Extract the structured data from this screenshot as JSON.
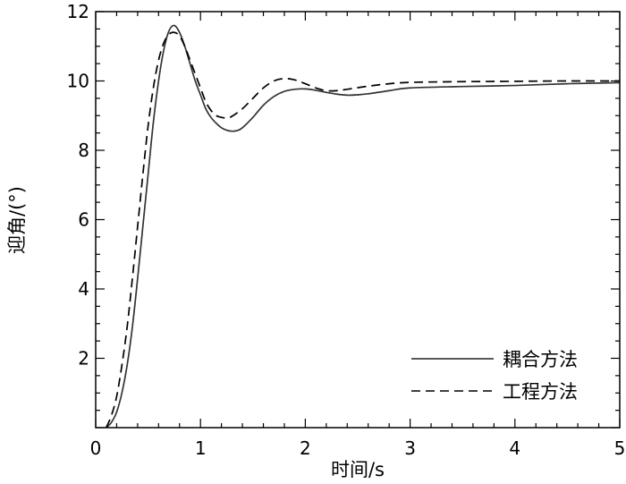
{
  "chart_data": {
    "type": "line",
    "title": "",
    "xlabel": "时间/s",
    "ylabel": "迎角/(°)",
    "xlim": [
      0,
      5
    ],
    "ylim": [
      0,
      12
    ],
    "x_ticks": [
      "0",
      "1",
      "2",
      "3",
      "4",
      "5"
    ],
    "y_ticks": [
      "2",
      "4",
      "6",
      "8",
      "10",
      "12"
    ],
    "grid": false,
    "legend_position": "bottom-right",
    "series": [
      {
        "name": "耦合方法",
        "style": "solid",
        "x": [
          0.1,
          0.15,
          0.2,
          0.25,
          0.3,
          0.35,
          0.4,
          0.45,
          0.5,
          0.55,
          0.6,
          0.65,
          0.7,
          0.75,
          0.8,
          0.85,
          0.9,
          0.95,
          1.0,
          1.05,
          1.1,
          1.15,
          1.2,
          1.25,
          1.3,
          1.35,
          1.4,
          1.5,
          1.6,
          1.7,
          1.8,
          1.9,
          2.0,
          2.1,
          2.2,
          2.3,
          2.4,
          2.5,
          2.6,
          2.8,
          3.0,
          3.5,
          4.0,
          4.5,
          5.0
        ],
        "y": [
          0.0,
          0.15,
          0.45,
          1.0,
          1.8,
          2.9,
          4.3,
          5.8,
          7.3,
          8.8,
          10.0,
          10.9,
          11.45,
          11.6,
          11.4,
          11.0,
          10.5,
          10.0,
          9.6,
          9.2,
          8.95,
          8.78,
          8.65,
          8.58,
          8.55,
          8.57,
          8.65,
          8.95,
          9.3,
          9.55,
          9.7,
          9.76,
          9.77,
          9.73,
          9.67,
          9.62,
          9.59,
          9.6,
          9.63,
          9.72,
          9.8,
          9.84,
          9.87,
          9.92,
          9.95
        ]
      },
      {
        "name": "工程方法",
        "style": "dashed",
        "x": [
          0.1,
          0.15,
          0.2,
          0.25,
          0.3,
          0.35,
          0.4,
          0.45,
          0.5,
          0.55,
          0.6,
          0.65,
          0.7,
          0.75,
          0.8,
          0.85,
          0.9,
          0.95,
          1.0,
          1.05,
          1.1,
          1.15,
          1.2,
          1.25,
          1.3,
          1.4,
          1.5,
          1.6,
          1.7,
          1.8,
          1.9,
          2.0,
          2.1,
          2.2,
          2.3,
          2.4,
          2.6,
          2.8,
          3.0,
          3.5,
          4.0,
          4.5,
          5.0
        ],
        "y": [
          0.0,
          0.35,
          0.9,
          1.8,
          2.9,
          4.3,
          5.8,
          7.3,
          8.7,
          9.8,
          10.6,
          11.1,
          11.35,
          11.4,
          11.3,
          11.0,
          10.6,
          10.2,
          9.8,
          9.4,
          9.15,
          9.0,
          8.95,
          8.93,
          8.98,
          9.2,
          9.5,
          9.8,
          10.0,
          10.07,
          10.03,
          9.92,
          9.8,
          9.72,
          9.72,
          9.76,
          9.85,
          9.92,
          9.96,
          9.98,
          9.99,
          10.0,
          10.0
        ]
      }
    ]
  }
}
